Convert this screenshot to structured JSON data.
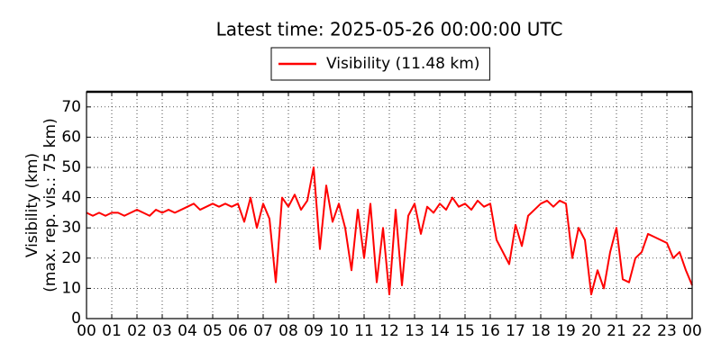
{
  "chart_data": {
    "type": "line",
    "title": "Latest time: 2025-05-26 00:00:00 UTC",
    "ylabel": [
      "Visibility (km)",
      "(max. rep. vis.: 75 km)"
    ],
    "x": [
      0,
      0.25,
      0.5,
      0.75,
      1,
      1.25,
      1.5,
      1.75,
      2,
      2.25,
      2.5,
      2.75,
      3,
      3.25,
      3.5,
      3.75,
      4,
      4.25,
      4.5,
      4.75,
      5,
      5.25,
      5.5,
      5.75,
      6,
      6.25,
      6.5,
      6.75,
      7,
      7.25,
      7.5,
      7.75,
      8,
      8.25,
      8.5,
      8.75,
      9,
      9.25,
      9.5,
      9.75,
      10,
      10.25,
      10.5,
      10.75,
      11,
      11.25,
      11.5,
      11.75,
      12,
      12.25,
      12.5,
      12.75,
      13,
      13.25,
      13.5,
      13.75,
      14,
      14.25,
      14.5,
      14.75,
      15,
      15.25,
      15.5,
      15.75,
      16,
      16.25,
      16.5,
      16.75,
      17,
      17.25,
      17.5,
      17.75,
      18,
      18.25,
      18.5,
      18.75,
      19,
      19.25,
      19.5,
      19.75,
      20,
      20.25,
      20.5,
      20.75,
      21,
      21.25,
      21.5,
      21.75,
      22,
      22.25,
      22.5,
      22.75,
      23,
      23.25,
      23.5,
      23.75,
      24
    ],
    "series": [
      {
        "name": "Visibility (11.48 km)",
        "color": "#ff0000",
        "values": [
          35,
          34,
          35,
          34,
          35,
          35,
          34,
          35,
          36,
          35,
          34,
          36,
          35,
          36,
          35,
          36,
          37,
          38,
          36,
          37,
          38,
          37,
          38,
          37,
          38,
          32,
          40,
          30,
          38,
          33,
          12,
          40,
          37,
          41,
          36,
          39,
          50,
          23,
          44,
          32,
          38,
          30,
          16,
          36,
          20,
          38,
          12,
          30,
          8,
          36,
          11,
          34,
          38,
          28,
          37,
          35,
          38,
          36,
          40,
          37,
          38,
          36,
          39,
          37,
          38,
          26,
          22,
          18,
          31,
          24,
          34,
          36,
          38,
          39,
          37,
          39,
          38,
          20,
          30,
          26,
          8,
          16,
          10,
          22,
          30,
          13,
          12,
          20,
          22,
          28,
          27,
          26,
          25,
          20,
          22,
          16,
          11
        ]
      }
    ],
    "xlim": [
      0,
      24
    ],
    "xticks": [
      {
        "value": 0,
        "label": "00"
      },
      {
        "value": 1,
        "label": "01"
      },
      {
        "value": 2,
        "label": "02"
      },
      {
        "value": 3,
        "label": "03"
      },
      {
        "value": 4,
        "label": "04"
      },
      {
        "value": 5,
        "label": "05"
      },
      {
        "value": 6,
        "label": "06"
      },
      {
        "value": 7,
        "label": "07"
      },
      {
        "value": 8,
        "label": "08"
      },
      {
        "value": 9,
        "label": "09"
      },
      {
        "value": 10,
        "label": "10"
      },
      {
        "value": 11,
        "label": "11"
      },
      {
        "value": 12,
        "label": "12"
      },
      {
        "value": 13,
        "label": "13"
      },
      {
        "value": 14,
        "label": "14"
      },
      {
        "value": 15,
        "label": "15"
      },
      {
        "value": 16,
        "label": "16"
      },
      {
        "value": 17,
        "label": "17"
      },
      {
        "value": 18,
        "label": "18"
      },
      {
        "value": 19,
        "label": "19"
      },
      {
        "value": 20,
        "label": "20"
      },
      {
        "value": 21,
        "label": "21"
      },
      {
        "value": 22,
        "label": "22"
      },
      {
        "value": 23,
        "label": "23"
      },
      {
        "value": 24,
        "label": "00"
      }
    ],
    "ylim": [
      0,
      75
    ],
    "yticks": [
      0,
      10,
      20,
      30,
      40,
      50,
      60,
      70
    ],
    "grid": true,
    "legend": "top"
  }
}
